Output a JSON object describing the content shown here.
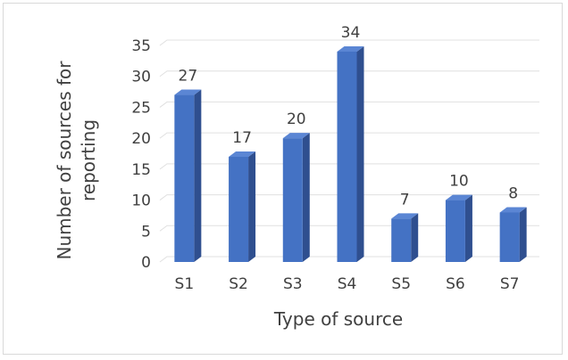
{
  "chart_data": {
    "type": "bar",
    "style": "3d-column",
    "title": "",
    "xlabel": "Type of source",
    "ylabel_lines": [
      "Number of sources for",
      "reporting"
    ],
    "categories": [
      "S1",
      "S2",
      "S3",
      "S4",
      "S5",
      "S6",
      "S7"
    ],
    "values": [
      27,
      17,
      20,
      34,
      7,
      10,
      8
    ],
    "ylim": [
      0,
      35
    ],
    "yticks": [
      "0",
      "5",
      "10",
      "15",
      "20",
      "25",
      "30",
      "35"
    ],
    "grid": true,
    "legend": "none",
    "data_labels": true,
    "colors": {
      "bar_front": "#4472c4",
      "bar_side": "#2f4f8f",
      "bar_top": "#5b86d4",
      "grid": "#e0e0e0",
      "text": "#404040"
    }
  }
}
